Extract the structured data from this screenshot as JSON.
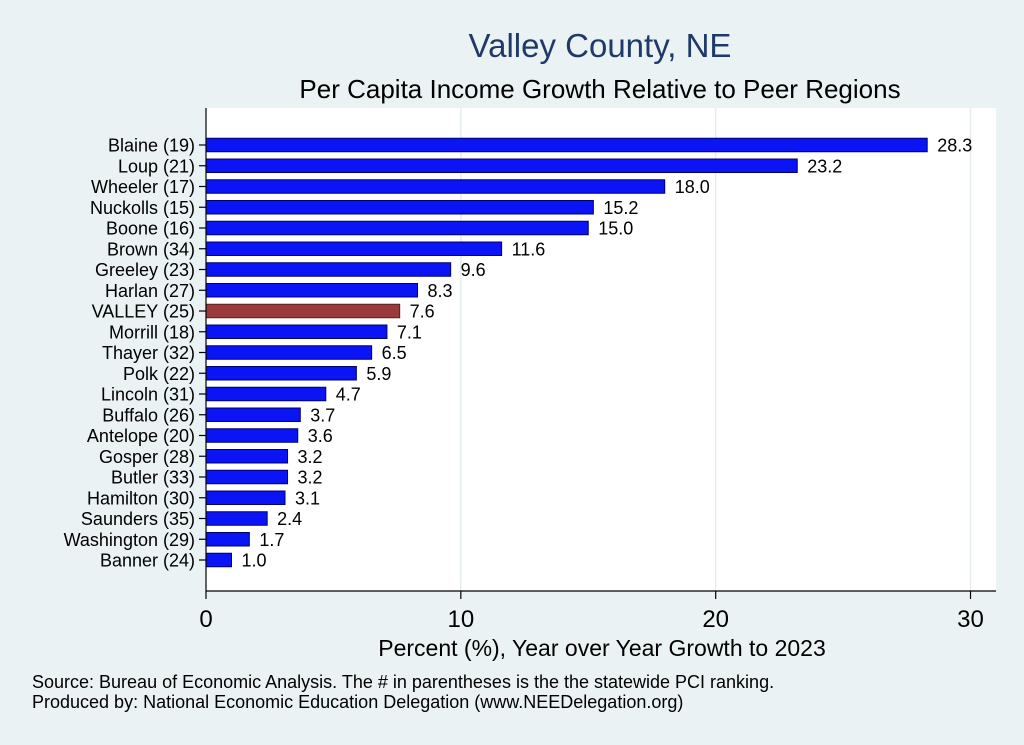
{
  "chart_data": {
    "type": "bar",
    "orientation": "horizontal",
    "title": "Valley County, NE",
    "subtitle": "Per Capita Income Growth Relative to Peer Regions",
    "xlabel": "Percent (%), Year over Year Growth to 2023",
    "ylabel": "",
    "xlim": [
      0,
      31
    ],
    "xticks": [
      "0",
      "10",
      "20",
      "30"
    ],
    "grid": true,
    "categories": [
      "Blaine (19)",
      "Loup (21)",
      "Wheeler (17)",
      "Nuckolls (15)",
      "Boone (16)",
      "Brown (34)",
      "Greeley (23)",
      "Harlan (27)",
      "VALLEY (25)",
      "Morrill (18)",
      "Thayer (32)",
      "Polk (22)",
      "Lincoln (31)",
      "Buffalo (26)",
      "Antelope (20)",
      "Gosper (28)",
      "Butler (33)",
      "Hamilton (30)",
      "Saunders (35)",
      "Washington (29)",
      "Banner (24)"
    ],
    "values": [
      28.3,
      23.2,
      18.0,
      15.2,
      15.0,
      11.6,
      9.6,
      8.3,
      7.6,
      7.1,
      6.5,
      5.9,
      4.7,
      3.7,
      3.6,
      3.2,
      3.2,
      3.1,
      2.4,
      1.7,
      1.0
    ],
    "value_labels": [
      "28.3",
      "23.2",
      "18.0",
      "15.2",
      "15.0",
      "11.6",
      "9.6",
      "8.3",
      "7.6",
      "7.1",
      "6.5",
      "5.9",
      "4.7",
      "3.7",
      "3.6",
      "3.2",
      "3.2",
      "3.1",
      "2.4",
      "1.7",
      "1.0"
    ],
    "highlight_category": "VALLEY (25)",
    "colors": {
      "bar": "#0a14f5",
      "highlight": "#9a3a3a",
      "background": "#eaf2f3",
      "plot_bg": "#ffffff",
      "grid": "#e5ecee",
      "title": "#1f3a68"
    }
  },
  "notes": {
    "source": "Source: Bureau of Economic Analysis. The # in parentheses is the the statewide PCI ranking.",
    "produced_by": "Produced by: National Economic Education Delegation (www.NEEDelegation.org)"
  }
}
